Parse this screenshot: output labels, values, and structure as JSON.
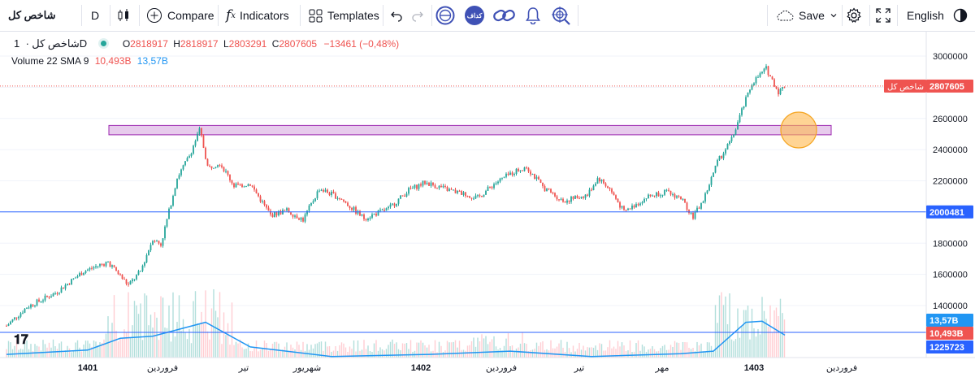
{
  "toolbar": {
    "symbol": "شاخص کل",
    "interval": "D",
    "compare_label": "Compare",
    "indicators_label": "Indicators",
    "templates_label": "Templates",
    "fx_label": "f",
    "fx_sub": "x",
    "save_label": "Save",
    "language_label": "English",
    "badge_text": "کداف"
  },
  "legend": {
    "title": "شاخص کل",
    "interval": "1D",
    "ohlc": {
      "o_label": "O",
      "o": "2818917",
      "h_label": "H",
      "h": "2818917",
      "l_label": "L",
      "l": "2803291",
      "c_label": "C",
      "c": "2807605",
      "change": "−13461 (−0,48%)"
    },
    "volume_label": "Volume 22 SMA 9",
    "volume_value": "10,493B",
    "volume_sma": "13,57B"
  },
  "price_axis": {
    "ticks": [
      "3000000",
      "2800000",
      "2600000",
      "2400000",
      "2200000",
      "2000000",
      "1800000",
      "1600000",
      "1400000"
    ],
    "last_price_label": "2807605",
    "symbol_tag": "شاخص کل",
    "hline_label": "2000481",
    "vol_sma_label": "13,57B",
    "vol_value_label": "10,493B",
    "vol_hline_label": "1225723"
  },
  "time_axis": {
    "labels": [
      {
        "text": "1401",
        "bold": true
      },
      {
        "text": "فروردین",
        "bold": false
      },
      {
        "text": "تیر",
        "bold": false
      },
      {
        "text": "شهریور",
        "bold": false
      },
      {
        "text": "1402",
        "bold": true
      },
      {
        "text": "فروردین",
        "bold": false
      },
      {
        "text": "تیر",
        "bold": false
      },
      {
        "text": "مهر",
        "bold": false
      },
      {
        "text": "1403",
        "bold": true
      },
      {
        "text": "فروردین",
        "bold": false
      }
    ]
  },
  "colors": {
    "up": "#26a69a",
    "down": "#ef5350",
    "sma": "#2196f3",
    "hline": "#2962ff",
    "zone_fill": "#e1bee7",
    "zone_border": "#9c27b0",
    "marker": "#ffb74d"
  },
  "chart_data": {
    "type": "candlestick",
    "y_range": [
      1200000,
      3100000
    ],
    "horizontal_line": 2000481,
    "last_price": 2807605,
    "resistance_zone": [
      2495000,
      2555000
    ],
    "key_points": [
      {
        "t": 0,
        "v": 1270000
      },
      {
        "t": 25,
        "v": 1390000
      },
      {
        "t": 60,
        "v": 1480000
      },
      {
        "t": 95,
        "v": 1620000
      },
      {
        "t": 125,
        "v": 1680000
      },
      {
        "t": 150,
        "v": 1530000
      },
      {
        "t": 165,
        "v": 1620000
      },
      {
        "t": 180,
        "v": 1830000
      },
      {
        "t": 190,
        "v": 1790000
      },
      {
        "t": 210,
        "v": 2220000
      },
      {
        "t": 225,
        "v": 2360000
      },
      {
        "t": 238,
        "v": 2530000
      },
      {
        "t": 248,
        "v": 2280000
      },
      {
        "t": 262,
        "v": 2320000
      },
      {
        "t": 280,
        "v": 2170000
      },
      {
        "t": 300,
        "v": 2180000
      },
      {
        "t": 325,
        "v": 1980000
      },
      {
        "t": 345,
        "v": 2010000
      },
      {
        "t": 365,
        "v": 1950000
      },
      {
        "t": 385,
        "v": 2150000
      },
      {
        "t": 410,
        "v": 2090000
      },
      {
        "t": 440,
        "v": 1960000
      },
      {
        "t": 470,
        "v": 2020000
      },
      {
        "t": 495,
        "v": 2140000
      },
      {
        "t": 515,
        "v": 2190000
      },
      {
        "t": 545,
        "v": 2140000
      },
      {
        "t": 580,
        "v": 2090000
      },
      {
        "t": 600,
        "v": 2180000
      },
      {
        "t": 625,
        "v": 2260000
      },
      {
        "t": 640,
        "v": 2290000
      },
      {
        "t": 660,
        "v": 2160000
      },
      {
        "t": 685,
        "v": 2070000
      },
      {
        "t": 715,
        "v": 2110000
      },
      {
        "t": 728,
        "v": 2220000
      },
      {
        "t": 742,
        "v": 2150000
      },
      {
        "t": 760,
        "v": 2000000
      },
      {
        "t": 790,
        "v": 2100000
      },
      {
        "t": 810,
        "v": 2130000
      },
      {
        "t": 830,
        "v": 2090000
      },
      {
        "t": 845,
        "v": 1970000
      },
      {
        "t": 858,
        "v": 2080000
      },
      {
        "t": 875,
        "v": 2320000
      },
      {
        "t": 893,
        "v": 2470000
      },
      {
        "t": 905,
        "v": 2650000
      },
      {
        "t": 918,
        "v": 2830000
      },
      {
        "t": 935,
        "v": 2920000
      },
      {
        "t": 950,
        "v": 2770000
      },
      {
        "t": 958,
        "v": 2807605
      }
    ],
    "volume_scale": [
      0,
      3.5
    ],
    "volume_sma_points": [
      {
        "t": 0,
        "v": 0.15
      },
      {
        "t": 100,
        "v": 0.35
      },
      {
        "t": 140,
        "v": 0.9
      },
      {
        "t": 180,
        "v": 1.0
      },
      {
        "t": 245,
        "v": 1.65
      },
      {
        "t": 300,
        "v": 0.5
      },
      {
        "t": 400,
        "v": 0.05
      },
      {
        "t": 520,
        "v": 0.15
      },
      {
        "t": 620,
        "v": 0.3
      },
      {
        "t": 720,
        "v": 0.05
      },
      {
        "t": 830,
        "v": 0.18
      },
      {
        "t": 870,
        "v": 0.3
      },
      {
        "t": 910,
        "v": 1.65
      },
      {
        "t": 930,
        "v": 1.7
      },
      {
        "t": 958,
        "v": 1.05
      }
    ]
  }
}
